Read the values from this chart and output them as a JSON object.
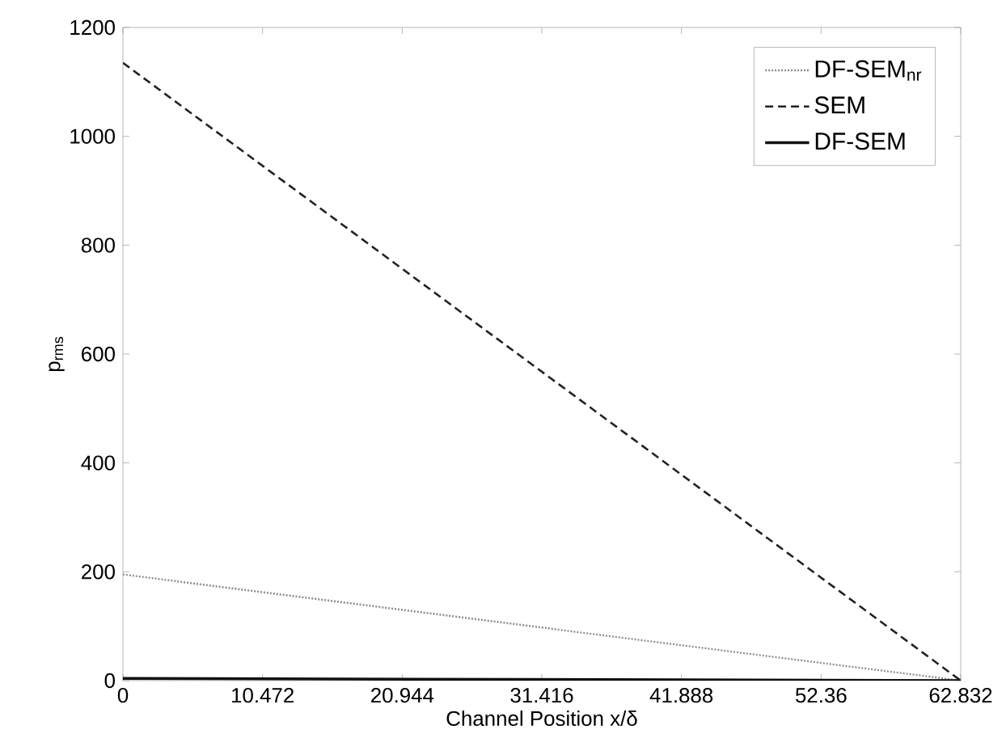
{
  "chart_data": {
    "type": "line",
    "xlabel": "Channel Position x/δ",
    "ylabel": "p$_{rms}$",
    "x": [
      0,
      62.832
    ],
    "series": [
      {
        "name": "DF-SEM$_{nr}$",
        "color": "#8c8c8c",
        "line_style": "dotted",
        "values": [
          195,
          0
        ]
      },
      {
        "name": "SEM",
        "color": "#222222",
        "line_style": "dashed",
        "values": [
          1135,
          0
        ]
      },
      {
        "name": "DF-SEM",
        "color": "#111111",
        "line_style": "solid",
        "values": [
          4,
          0
        ]
      }
    ],
    "xlim": [
      0,
      62.832
    ],
    "ylim": [
      0,
      1200
    ],
    "xticks": [
      0,
      10.472,
      20.944,
      31.416,
      41.888,
      52.36,
      62.832
    ],
    "yticks": [
      0,
      200,
      400,
      600,
      800,
      1000,
      1200
    ],
    "legend": "top right",
    "grid": false,
    "marker": "none"
  }
}
